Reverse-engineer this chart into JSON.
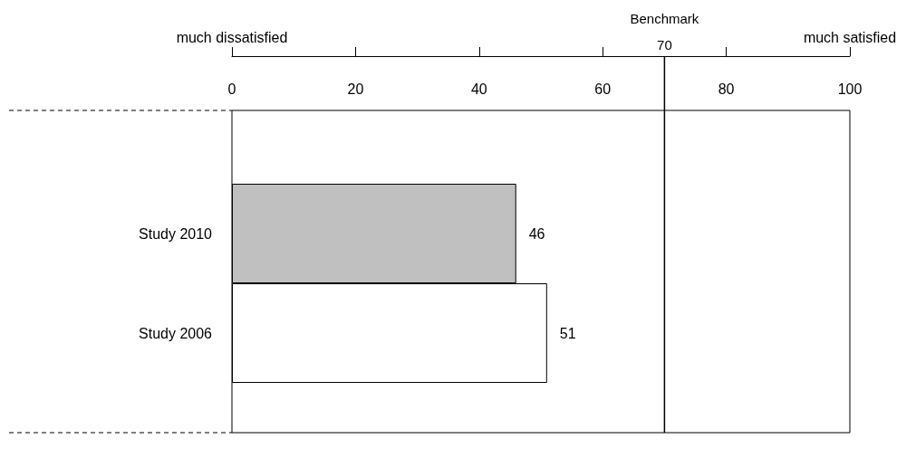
{
  "chart_data": {
    "type": "bar",
    "orientation": "horizontal",
    "categories": [
      "Study 2010",
      "Study 2006"
    ],
    "values": [
      46,
      51
    ],
    "colors": [
      "#c0c0c0",
      "#ffffff"
    ],
    "data_labels": true,
    "xlim": [
      0,
      100
    ],
    "xticks": [
      0,
      20,
      40,
      60,
      80,
      100
    ],
    "ref_lines": [
      {
        "axis": "x",
        "value": 70,
        "label": "Benchmark\n70"
      }
    ],
    "annotations": [
      "much dissatisfied",
      "much satisfied"
    ],
    "grid": false
  }
}
